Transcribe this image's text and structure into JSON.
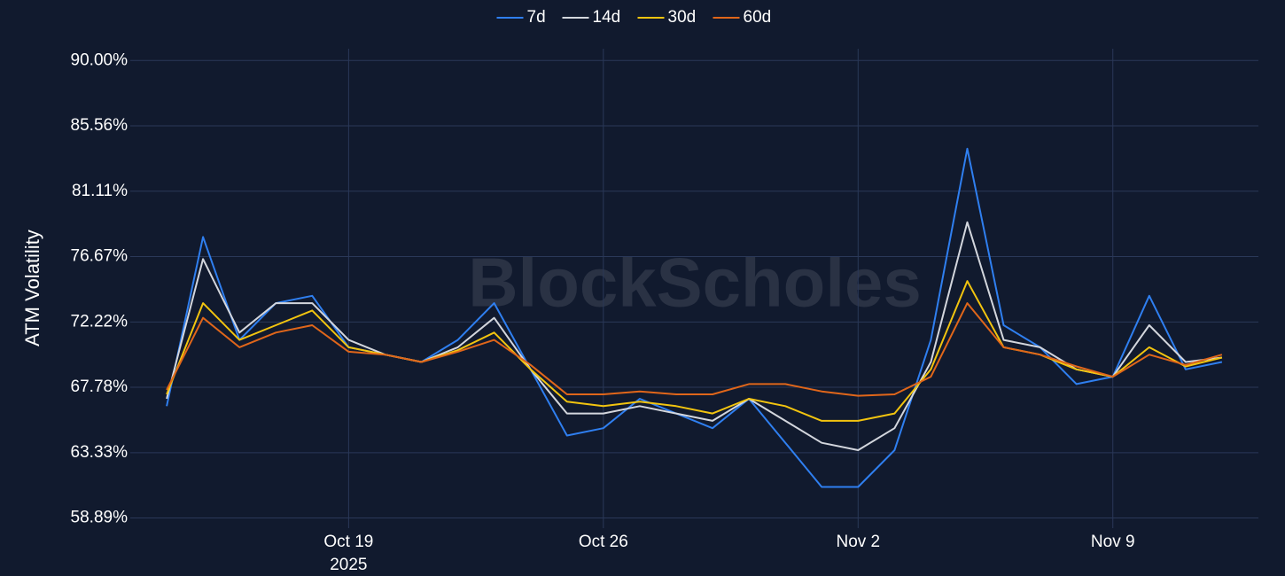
{
  "chart_data": {
    "type": "line",
    "y_label": "ATM Volatility",
    "watermark": "BlockScholes",
    "x": [
      "2025-10-14",
      "2025-10-15",
      "2025-10-16",
      "2025-10-17",
      "2025-10-18",
      "2025-10-19",
      "2025-10-20",
      "2025-10-21",
      "2025-10-22",
      "2025-10-23",
      "2025-10-24",
      "2025-10-25",
      "2025-10-26",
      "2025-10-27",
      "2025-10-28",
      "2025-10-29",
      "2025-10-30",
      "2025-10-31",
      "2025-11-01",
      "2025-11-02",
      "2025-11-03",
      "2025-11-04",
      "2025-11-05",
      "2025-11-06",
      "2025-11-07",
      "2025-11-08",
      "2025-11-09",
      "2025-11-10",
      "2025-11-11",
      "2025-11-12"
    ],
    "series": [
      {
        "name": "7d",
        "color": "#2f7ff0",
        "values": [
          66.5,
          78,
          71,
          73.5,
          74,
          70.5,
          70,
          69.5,
          71,
          73.5,
          69,
          64.5,
          65,
          67,
          66,
          65,
          67,
          64,
          61,
          61,
          63.5,
          71,
          84,
          72,
          70.5,
          68,
          68.5,
          74,
          69,
          69.5
        ]
      },
      {
        "name": "14d",
        "color": "#d3d6dd",
        "values": [
          67,
          76.5,
          71.5,
          73.5,
          73.5,
          71,
          70,
          69.5,
          70.5,
          72.5,
          69,
          66,
          66,
          66.5,
          66,
          65.5,
          67,
          65.5,
          64,
          63.5,
          65,
          69.5,
          79,
          71,
          70.5,
          69,
          68.5,
          72,
          69.5,
          69.8
        ]
      },
      {
        "name": "30d",
        "color": "#f2c40f",
        "values": [
          67.3,
          73.5,
          71,
          72,
          73,
          70.5,
          70,
          69.5,
          70.3,
          71.5,
          69,
          66.8,
          66.5,
          66.8,
          66.5,
          66,
          67,
          66.5,
          65.5,
          65.5,
          66,
          69,
          75,
          70.5,
          70,
          69,
          68.5,
          70.5,
          69.2,
          69.8
        ]
      },
      {
        "name": "60d",
        "color": "#e0661a",
        "values": [
          67.6,
          72.5,
          70.5,
          71.5,
          72,
          70.2,
          70,
          69.5,
          70.2,
          71,
          69.3,
          67.3,
          67.3,
          67.5,
          67.3,
          67.3,
          68,
          68,
          67.5,
          67.2,
          67.3,
          68.5,
          73.5,
          70.5,
          70,
          69.2,
          68.5,
          70,
          69.3,
          70
        ]
      }
    ],
    "xlim": [
      "2025-10-13",
      "2025-11-13"
    ],
    "xticks": [
      {
        "value": "2025-10-19",
        "label": "Oct 19"
      },
      {
        "value": "2025-10-26",
        "label": "Oct 26"
      },
      {
        "value": "2025-11-02",
        "label": "Nov 2"
      },
      {
        "value": "2025-11-09",
        "label": "Nov 9"
      }
    ],
    "xtick_year": "2025",
    "ylim": [
      58.2,
      90.8
    ],
    "yticks": [
      {
        "value": 58.89,
        "label": "58.89%"
      },
      {
        "value": 63.33,
        "label": "63.33%"
      },
      {
        "value": 67.78,
        "label": "67.78%"
      },
      {
        "value": 72.22,
        "label": "72.22%"
      },
      {
        "value": 76.67,
        "label": "76.67%"
      },
      {
        "value": 81.11,
        "label": "81.11%"
      },
      {
        "value": 85.56,
        "label": "85.56%"
      },
      {
        "value": 90,
        "label": "90.00%"
      }
    ],
    "grid": true
  }
}
